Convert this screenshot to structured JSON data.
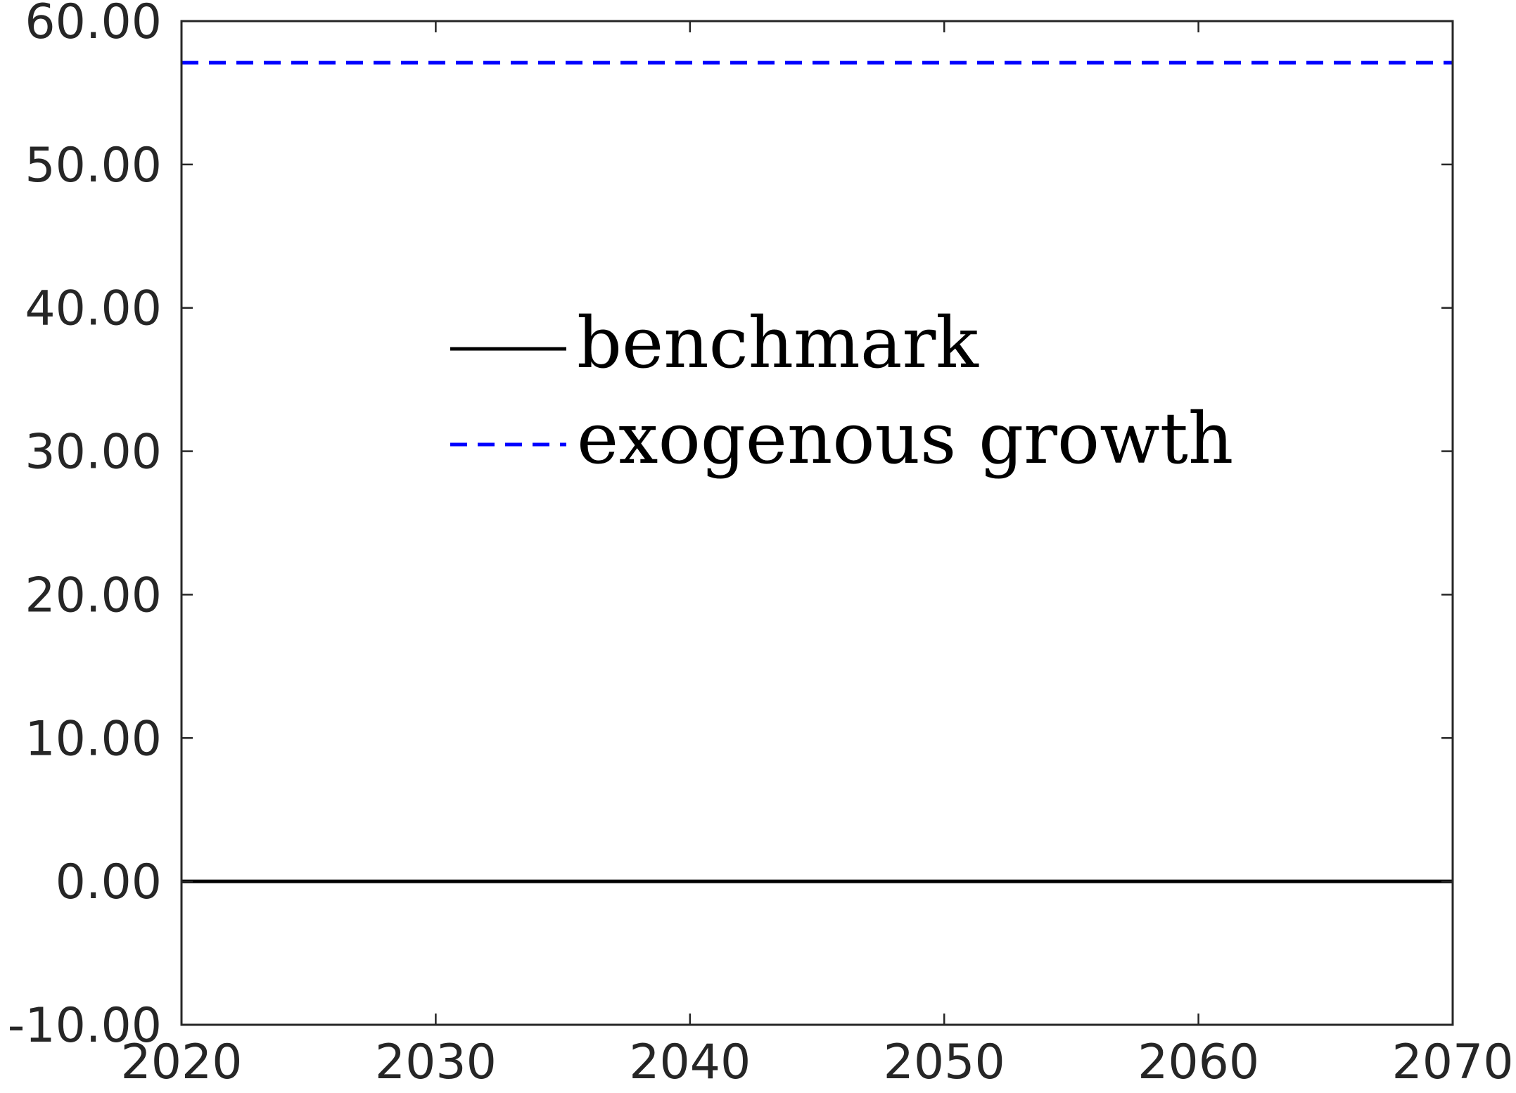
{
  "chart_data": {
    "type": "line",
    "title": "",
    "xlabel": "",
    "ylabel": "",
    "xlim": [
      2020,
      2070
    ],
    "ylim": [
      -10,
      60
    ],
    "x_ticks": [
      "2020",
      "2030",
      "2040",
      "2050",
      "2060",
      "2070"
    ],
    "y_ticks": [
      "60.00",
      "50.00",
      "40.00",
      "30.00",
      "20.00",
      "10.00",
      "0.00",
      "-10.00"
    ],
    "grid": false,
    "legend_position": "center-left",
    "series": [
      {
        "name": "benchmark",
        "color": "#000000",
        "dash": "solid",
        "x": [
          2020,
          2070
        ],
        "y": [
          0,
          0
        ]
      },
      {
        "name": "exogenous growth",
        "color": "#0000ff",
        "dash": "dashed",
        "x": [
          2020,
          2070
        ],
        "y": [
          57.1,
          57.1
        ]
      }
    ]
  }
}
